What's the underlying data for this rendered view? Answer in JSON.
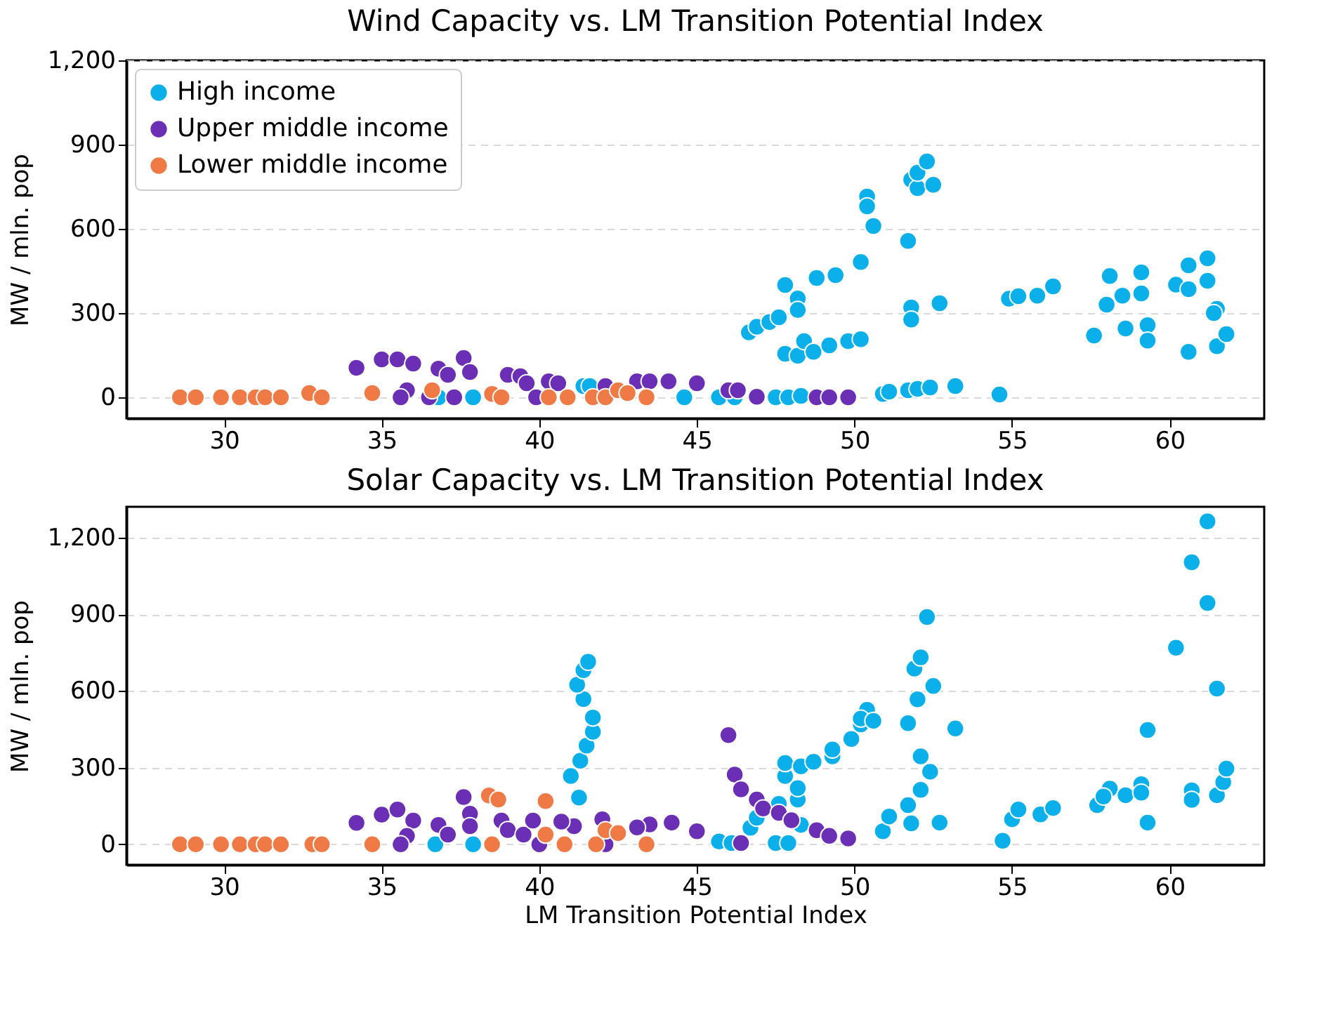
{
  "chart_data": [
    {
      "type": "scatter",
      "title": "Wind Capacity vs. LM Transition Potential Index",
      "ylabel": "MW / mln. pop",
      "xlim": [
        26.9,
        63
      ],
      "xticks": [
        30,
        35,
        40,
        45,
        50,
        55,
        60
      ],
      "ylim": [
        -75,
        1200
      ],
      "yticks": [
        0,
        300,
        600,
        900,
        {
          "value": 1200,
          "label": "1,200"
        }
      ],
      "grid": "y",
      "legend": "top left",
      "marker": "circle",
      "series": [
        {
          "name": "High income",
          "color": "#0bb0ea",
          "x": [
            46.65,
            46.9,
            47.3,
            47.6,
            47.8,
            48.2,
            48.2,
            47.8,
            48.2,
            48.4,
            48.7,
            48.8,
            49.4,
            49.2,
            49.8,
            50.2,
            50.2,
            50.4,
            50.4,
            50.6,
            51.7,
            51.8,
            51.8,
            51.8,
            52.0,
            52.0,
            52.3,
            52.5,
            52.7,
            50.9,
            51.1,
            51.7,
            52.0,
            52.4,
            53.2,
            54.6,
            54.9,
            55.2,
            55.8,
            56.3,
            57.6,
            58.1,
            58.0,
            58.5,
            58.6,
            59.1,
            59.1,
            59.3,
            59.3,
            60.2,
            60.6,
            60.6,
            60.6,
            61.2,
            61.2,
            61.5,
            61.4,
            61.5,
            61.8,
            44.6,
            45.7,
            46.2,
            47.5,
            47.9,
            48.3,
            36.8,
            37.9,
            41.4,
            41.6
          ],
          "values": [
            231,
            251,
            268,
            285,
            400,
            352,
            311,
            155,
            148,
            200,
            162,
            425,
            435,
            185,
            200,
            207,
            482,
            715,
            680,
            610,
            557,
            320,
            277,
            775,
            745,
            800,
            840,
            757,
            335,
            12,
            20,
            25,
            30,
            35,
            40,
            10,
            351,
            360,
            362,
            395,
            220,
            432,
            330,
            362,
            245,
            445,
            370,
            257,
            202,
            401,
            470,
            385,
            162,
            495,
            415,
            315,
            300,
            182,
            225,
            0,
            0,
            0,
            0,
            0,
            5,
            0,
            0,
            40,
            40
          ]
        },
        {
          "name": "Upper middle income",
          "color": "#6a2fb5",
          "x": [
            34.2,
            35.0,
            35.5,
            36.0,
            36.8,
            37.1,
            37.6,
            37.8,
            35.8,
            35.6,
            36.5,
            37.3,
            39.0,
            39.4,
            39.6,
            40.3,
            40.6,
            42.1,
            43.1,
            43.5,
            44.1,
            39.9,
            45.0,
            46.0,
            46.3,
            46.9,
            48.8,
            49.2,
            49.8
          ],
          "values": [
            105,
            135,
            135,
            120,
            102,
            80,
            140,
            90,
            25,
            0,
            0,
            0,
            80,
            75,
            50,
            57,
            50,
            40,
            57,
            57,
            57,
            0,
            50,
            25,
            25,
            2,
            0,
            0,
            0
          ]
        },
        {
          "name": "Lower middle income",
          "color": "#ef7a45",
          "x": [
            28.6,
            29.1,
            29.9,
            30.5,
            31.0,
            31.3,
            31.8,
            32.7,
            33.1,
            34.7,
            36.6,
            38.5,
            38.8,
            40.3,
            40.9,
            41.7,
            42.1,
            42.5,
            43.4,
            42.8
          ],
          "values": [
            0,
            0,
            0,
            0,
            0,
            0,
            0,
            15,
            0,
            15,
            25,
            12,
            0,
            0,
            0,
            0,
            0,
            25,
            0,
            15
          ]
        }
      ]
    },
    {
      "type": "scatter",
      "title": "Solar Capacity vs. LM Transition Potential Index",
      "xlabel": "LM Transition Potential Index",
      "ylabel": "MW / mln. pop",
      "xlim": [
        26.9,
        63
      ],
      "xticks": [
        30,
        35,
        40,
        45,
        50,
        55,
        60
      ],
      "ylim": [
        -80,
        1320
      ],
      "yticks": [
        0,
        300,
        600,
        900,
        {
          "value": 1200,
          "label": "1,200"
        }
      ],
      "grid": "y",
      "marker": "circle",
      "series": [
        {
          "color": "#0bb0ea",
          "x": [
            41.26,
            41.0,
            41.3,
            41.5,
            41.7,
            41.7,
            41.4,
            41.2,
            41.4,
            41.55,
            45.7,
            47.5,
            47.9,
            46.7,
            46.9,
            47.6,
            48.2,
            48.2,
            48.3,
            47.8,
            47.8,
            48.3,
            48.7,
            49.3,
            49.3,
            49.9,
            50.2,
            50.4,
            50.2,
            50.6,
            50.9,
            51.1,
            51.8,
            51.7,
            52.1,
            52.4,
            52.1,
            51.7,
            52.0,
            51.9,
            52.1,
            52.3,
            52.5,
            52.7,
            53.2,
            54.7,
            55.0,
            55.2,
            55.9,
            56.3,
            57.7,
            58.1,
            57.9,
            58.6,
            59.1,
            59.1,
            59.3,
            59.3,
            60.2,
            60.7,
            61.2,
            61.2,
            61.5,
            60.7,
            60.7,
            61.5,
            61.7,
            61.8,
            36.7,
            37.9,
            46.1
          ],
          "values": [
            183,
            267,
            327,
            386,
            440,
            496,
            568,
            624,
            681,
            714,
            11,
            5,
            5,
            65,
            104,
            158,
            175,
            220,
            76,
            267,
            318,
            305,
            323,
            344,
            371,
            412,
            469,
            526,
            492,
            483,
            51,
            109,
            82,
            153,
            213,
            284,
            344,
            474,
            567,
            687,
            731,
            889,
            619,
            85,
            453,
            14,
            98,
            136,
            117,
            142,
            153,
            218,
            187,
            192,
            235,
            202,
            85,
            447,
            769,
            1103,
            1263,
            944,
            609,
            211,
            174,
            192,
            243,
            296,
            0,
            0,
            5
          ]
        },
        {
          "color": "#6a2fb5",
          "x": [
            34.2,
            35.0,
            35.5,
            36.0,
            35.8,
            35.6,
            36.8,
            37.1,
            37.6,
            37.8,
            37.8,
            38.8,
            39.0,
            39.5,
            39.8,
            41.1,
            43.5,
            40.0,
            42.1,
            40.7,
            42.0,
            43.1,
            44.2,
            45.0,
            46.4,
            46.0,
            46.2,
            46.4,
            46.9,
            47.1,
            47.6,
            48.0,
            48.8,
            49.2,
            49.8
          ],
          "values": [
            84,
            116,
            136,
            93,
            33,
            0,
            76,
            38,
            185,
            120,
            71,
            93,
            56,
            38,
            93,
            71,
            78,
            0,
            0,
            89,
            98,
            66,
            85,
            51,
            5,
            427,
            273,
            215,
            175,
            140,
            123,
            94,
            55,
            33,
            23
          ]
        },
        {
          "color": "#ef7a45",
          "x": [
            28.6,
            29.1,
            29.9,
            30.5,
            31.0,
            31.3,
            31.8,
            32.8,
            33.1,
            34.7,
            38.4,
            38.7,
            38.5,
            40.2,
            40.2,
            40.8,
            41.8,
            42.1,
            42.5,
            43.4
          ],
          "values": [
            0,
            0,
            0,
            0,
            0,
            0,
            0,
            0,
            0,
            0,
            191,
            175,
            0,
            169,
            38,
            0,
            0,
            55,
            44,
            0
          ]
        }
      ]
    }
  ]
}
